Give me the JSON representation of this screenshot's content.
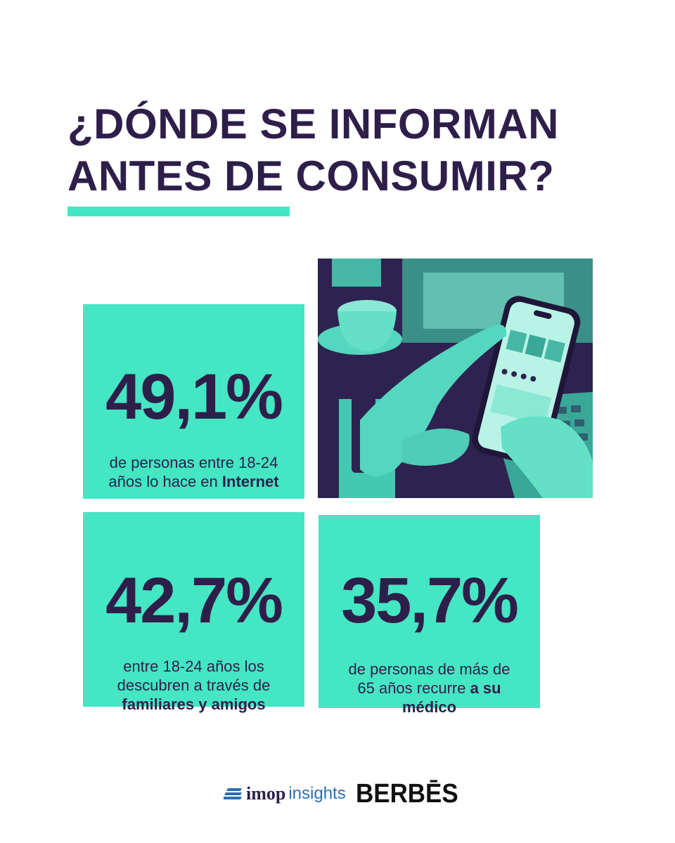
{
  "title": {
    "line1": "¿DÓNDE SE INFORMAN",
    "line2": "ANTES DE CONSUMIR?"
  },
  "stats": [
    {
      "value": "49,1%",
      "desc_plain": "de personas entre 18-24 años lo hace en ",
      "desc_bold": "Internet"
    },
    {
      "value": "42,7%",
      "desc_plain": "entre 18-24 años los descubren a través de ",
      "desc_bold": "familiares y amigos"
    },
    {
      "value": "35,7%",
      "desc_plain": "de personas de más de 65 años recurre ",
      "desc_bold": "a su médico"
    }
  ],
  "photo": {
    "subject": "hands holding a smartphone beside a coffee cup and laptop"
  },
  "logos": {
    "imop": "imop",
    "insights": "insights",
    "berbes": "BERBĒS"
  },
  "colors": {
    "accent": "#45e6c3",
    "text": "#2e1f4a",
    "insights_blue": "#2b6fb5"
  }
}
